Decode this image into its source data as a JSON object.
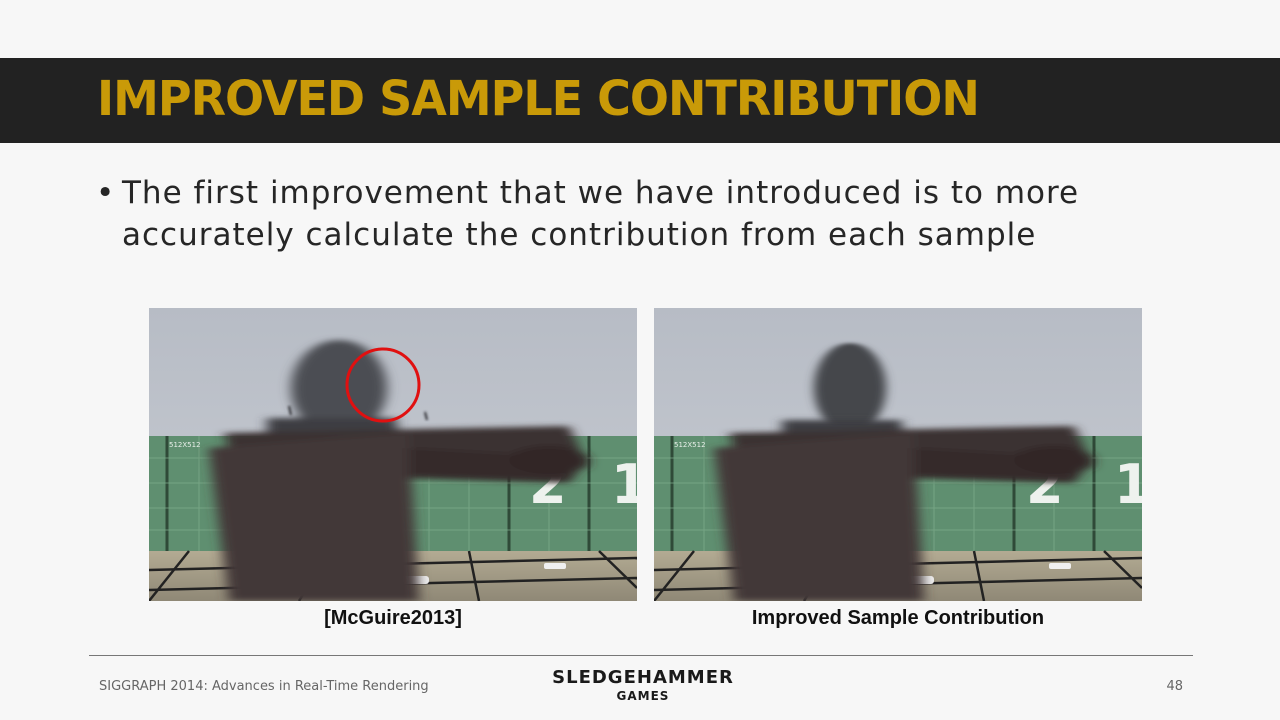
{
  "slide": {
    "title": "IMPROVED SAMPLE CONTRIBUTION",
    "bullet": "The first improvement that we have introduced is to more accurately calculate the contribution from each sample",
    "bullet_symbol": "•",
    "images": [
      {
        "caption": "[McGuire2013]",
        "markers": [
          "512X512",
          "2",
          "1"
        ],
        "highlight": "red-circle"
      },
      {
        "caption": "Improved Sample Contribution",
        "markers": [
          "512X512",
          "2",
          "1"
        ]
      }
    ],
    "footer": {
      "left": "SIGGRAPH 2014: Advances in Real-Time Rendering",
      "logo_line1": "SLEDGEHAMMER",
      "logo_line2": "GAMES",
      "page_number": "48"
    }
  },
  "colors": {
    "title_band": "#222222",
    "title_text": "#c99a08",
    "highlight_circle": "#e01010",
    "background": "#f7f7f7"
  }
}
